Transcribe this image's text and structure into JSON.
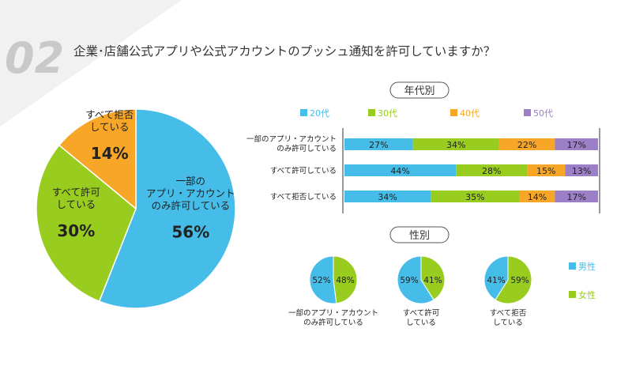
{
  "header": {
    "number": "02",
    "question": "企業･店舗公式アプリや公式アカウントのプッシュ通知を許可していますか？"
  },
  "colors": {
    "blue": "#46bce8",
    "green": "#98cc1e",
    "orange": "#f7a627",
    "purple": "#9b7fc7",
    "panel": "#f1f1f1",
    "number": "#c9c9c9"
  },
  "chart_data": [
    {
      "type": "pie",
      "title": "",
      "slices": [
        {
          "label_lines": [
            "一部の",
            "アプリ・アカウント",
            "のみ許可している"
          ],
          "value": 56,
          "value_label": "56%",
          "color": "#46bce8"
        },
        {
          "label_lines": [
            "すべて許可",
            "している"
          ],
          "value": 30,
          "value_label": "30%",
          "color": "#98cc1e"
        },
        {
          "label_lines": [
            "すべて拒否",
            "している"
          ],
          "value": 14,
          "value_label": "14%",
          "color": "#f7a627"
        }
      ]
    },
    {
      "type": "bar",
      "orientation": "horizontal",
      "stacked": true,
      "title": "年代別",
      "legend_position": "top",
      "categories": [
        "一部のアプリ・アカウントのみ許可している",
        "すべて許可している",
        "すべて拒否している"
      ],
      "category_lines": [
        [
          "一部のアプリ・アカウント",
          "のみ許可している"
        ],
        [
          "すべて許可している"
        ],
        [
          "すべて拒否している"
        ]
      ],
      "series": [
        {
          "name": "20代",
          "color": "#46bce8",
          "values": [
            27,
            44,
            34
          ],
          "labels": [
            "27%",
            "44%",
            "34%"
          ]
        },
        {
          "name": "30代",
          "color": "#98cc1e",
          "values": [
            34,
            28,
            35
          ],
          "labels": [
            "34%",
            "28%",
            "35%"
          ]
        },
        {
          "name": "40代",
          "color": "#f7a627",
          "values": [
            22,
            15,
            14
          ],
          "labels": [
            "22%",
            "15%",
            "14%"
          ]
        },
        {
          "name": "50代",
          "color": "#9b7fc7",
          "values": [
            17,
            13,
            17
          ],
          "labels": [
            "17%",
            "13%",
            "17%"
          ]
        }
      ]
    },
    {
      "type": "pie",
      "title": "性別",
      "legend": [
        {
          "name": "男性",
          "color": "#46bce8"
        },
        {
          "name": "女性",
          "color": "#98cc1e"
        }
      ],
      "groups": [
        {
          "label_lines": [
            "一部のアプリ・アカウント",
            "のみ許可している"
          ],
          "male": 52,
          "female": 48,
          "male_label": "52%",
          "female_label": "48%"
        },
        {
          "label_lines": [
            "すべて許可",
            "している"
          ],
          "male": 59,
          "female": 41,
          "male_label": "59%",
          "female_label": "41%"
        },
        {
          "label_lines": [
            "すべて拒否",
            "している"
          ],
          "male": 41,
          "female": 59,
          "male_label": "41%",
          "female_label": "59%"
        }
      ]
    }
  ]
}
